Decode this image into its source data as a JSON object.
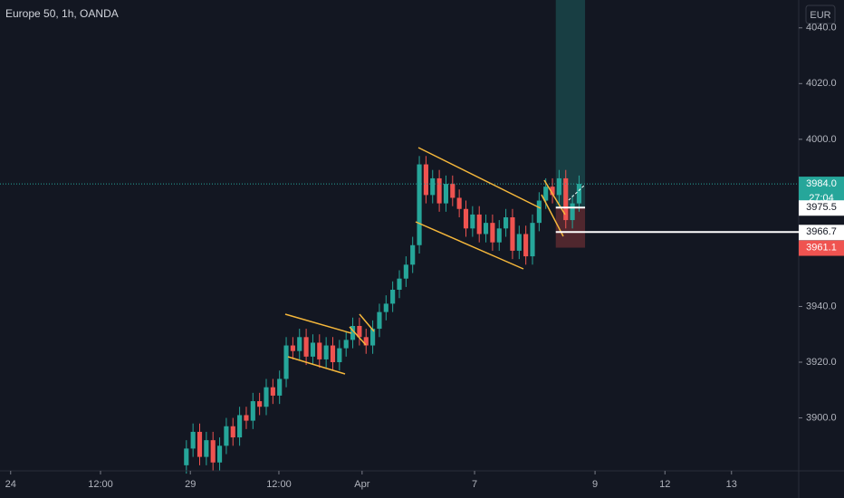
{
  "chart_data": {
    "type": "candlestick",
    "title": "Europe 50, 1h, OANDA",
    "currency": "EUR",
    "countdown": "27:04",
    "up_color": "#26a69a",
    "down_color": "#ef5350",
    "x": [
      0,
      1,
      2,
      3,
      4,
      5,
      6,
      7,
      8,
      9,
      10,
      11,
      12,
      13,
      14,
      15,
      16,
      17,
      18,
      19,
      20,
      21,
      22,
      23,
      24,
      25,
      26,
      27,
      28,
      29,
      30,
      31,
      32,
      33,
      34,
      35,
      36,
      37,
      38,
      39,
      40,
      41,
      42,
      43,
      44,
      45,
      46,
      47,
      48,
      49,
      50,
      51,
      52,
      53,
      54,
      55,
      56,
      57,
      58,
      59
    ],
    "open": [
      3883,
      3889,
      3895,
      3886,
      3892,
      3884,
      3890,
      3897,
      3893,
      3901,
      3899,
      3906,
      3904,
      3911,
      3908,
      3914,
      3926,
      3924,
      3929,
      3922,
      3927,
      3921,
      3926,
      3920,
      3925,
      3928,
      3933,
      3929,
      3926,
      3932,
      3938,
      3941,
      3946,
      3950,
      3955,
      3962,
      3991,
      3980,
      3986,
      3977,
      3984,
      3979,
      3975,
      3968,
      3973,
      3966,
      3970,
      3963,
      3968,
      3972,
      3960,
      3966,
      3958,
      3970,
      3978,
      3983,
      3980,
      3986,
      3971,
      3977
    ],
    "high": [
      3892,
      3898,
      3898,
      3895,
      3895,
      3893,
      3900,
      3900,
      3904,
      3904,
      3909,
      3909,
      3914,
      3914,
      3917,
      3929,
      3929,
      3932,
      3932,
      3930,
      3930,
      3929,
      3929,
      3928,
      3931,
      3936,
      3936,
      3932,
      3935,
      3941,
      3944,
      3949,
      3953,
      3958,
      3965,
      3994,
      3994,
      3989,
      3989,
      3987,
      3987,
      3982,
      3978,
      3976,
      3976,
      3973,
      3973,
      3971,
      3975,
      3975,
      3969,
      3969,
      3973,
      3981,
      3986,
      3986,
      3989,
      3989,
      3980,
      3987
    ],
    "low": [
      3880,
      3886,
      3883,
      3883,
      3881,
      3881,
      3887,
      3890,
      3890,
      3896,
      3896,
      3901,
      3901,
      3905,
      3905,
      3911,
      3921,
      3921,
      3919,
      3919,
      3918,
      3918,
      3917,
      3917,
      3922,
      3925,
      3926,
      3923,
      3923,
      3929,
      3935,
      3938,
      3943,
      3947,
      3952,
      3959,
      3977,
      3977,
      3974,
      3974,
      3976,
      3972,
      3965,
      3965,
      3963,
      3963,
      3960,
      3960,
      3965,
      3957,
      3957,
      3955,
      3955,
      3967,
      3975,
      3977,
      3977,
      3968,
      3968,
      3974
    ],
    "close": [
      3889,
      3895,
      3886,
      3892,
      3884,
      3890,
      3897,
      3893,
      3901,
      3899,
      3906,
      3904,
      3911,
      3908,
      3914,
      3926,
      3924,
      3929,
      3922,
      3927,
      3921,
      3926,
      3920,
      3925,
      3928,
      3933,
      3929,
      3926,
      3932,
      3938,
      3941,
      3946,
      3950,
      3955,
      3962,
      3991,
      3980,
      3986,
      3977,
      3984,
      3979,
      3975,
      3968,
      3973,
      3966,
      3970,
      3963,
      3968,
      3972,
      3960,
      3966,
      3958,
      3970,
      3978,
      3983,
      3980,
      3986,
      3971,
      3977,
      3984
    ],
    "xlim": [
      -28,
      92
    ],
    "xticks": [
      {
        "value": -26.4,
        "label": "24"
      },
      {
        "value": -12.9,
        "label": "12:00"
      },
      {
        "value": 0.6,
        "label": "29"
      },
      {
        "value": 13.9,
        "label": "12:00"
      },
      {
        "value": 26.4,
        "label": "Apr"
      },
      {
        "value": 43.3,
        "label": "7"
      },
      {
        "value": 61.4,
        "label": "9"
      },
      {
        "value": 71.9,
        "label": "12"
      },
      {
        "value": 81.9,
        "label": "13"
      }
    ],
    "ylim": [
      3881,
      4050
    ],
    "yticks": [
      {
        "value": 3900,
        "label": "3900.0"
      },
      {
        "value": 3920,
        "label": "3920.0"
      },
      {
        "value": 3940,
        "label": "3940.0"
      },
      {
        "value": 4000,
        "label": "4000.0"
      },
      {
        "value": 4020,
        "label": "4020.0"
      },
      {
        "value": 4040,
        "label": "4040.0"
      }
    ],
    "last_price": {
      "value": 3984.0,
      "label": "3984.0"
    },
    "entry_price": {
      "value": 3975.5,
      "label": "3975.5"
    },
    "level_price": {
      "value": 3966.7,
      "label": "3966.7"
    },
    "stop_price": {
      "value": 3961.1,
      "label": "3961.1"
    }
  }
}
